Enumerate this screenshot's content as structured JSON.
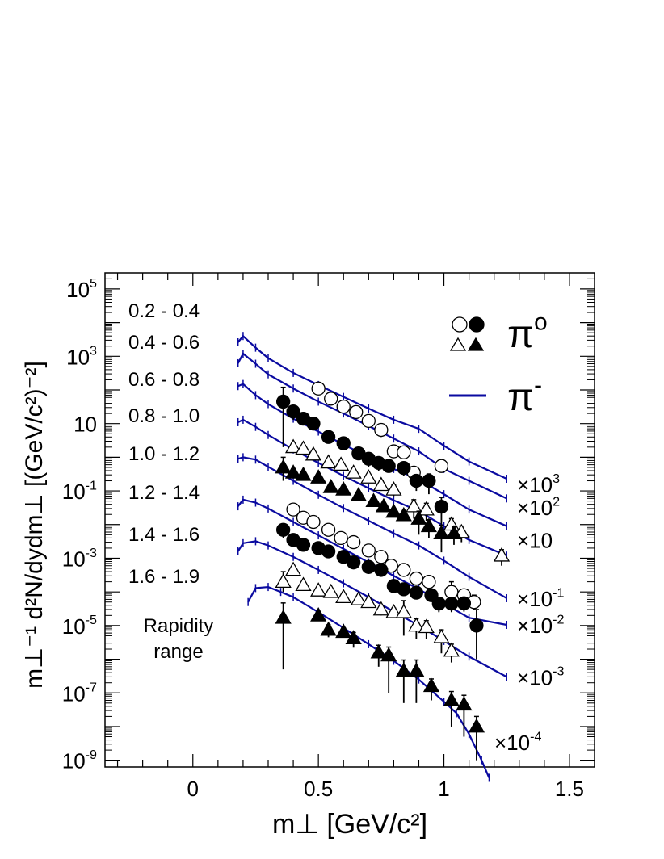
{
  "chart_data": {
    "type": "scatter",
    "xlabel": "m⊥  [GeV/c²]",
    "ylabel": "m⊥⁻¹ d²N/dydm⊥ [(GeV/c²)⁻²]",
    "xlim": [
      -0.35,
      1.6
    ],
    "ylim": [
      6.31e-10,
      300000
    ],
    "yscale": "log",
    "x_ticks": [
      "0",
      "0.5",
      "1",
      "1.5"
    ],
    "y_ticks": [
      {
        "base": "10",
        "exp": "5",
        "value": 100000
      },
      {
        "base": "10",
        "exp": "3",
        "value": 1000
      },
      {
        "base": "10",
        "exp": "",
        "value": 10
      },
      {
        "base": "10",
        "exp": "-1",
        "value": 0.1
      },
      {
        "base": "10",
        "exp": "-3",
        "value": 0.001
      },
      {
        "base": "10",
        "exp": "-5",
        "value": 1e-05
      },
      {
        "base": "10",
        "exp": "-7",
        "value": 1e-07
      },
      {
        "base": "10",
        "exp": "-9",
        "value": 1e-09
      }
    ],
    "grid": false,
    "legend": {
      "placement": "top-right",
      "entries": [
        {
          "markers": [
            "open-circle",
            "filled-circle"
          ],
          "label": "π",
          "sup": "o"
        },
        {
          "markers": [
            "open-triangle",
            "filled-triangle"
          ],
          "label": "π",
          "sup": "-"
        },
        {
          "markers": [
            "line"
          ],
          "label": "π",
          "sup": "-"
        }
      ]
    },
    "rapidity_labels": [
      "0.2 - 0.4",
      "0.4 - 0.6",
      "0.6 - 0.8",
      "0.8 - 1.0",
      "1.0 - 1.2",
      "1.2 - 1.4",
      "1.4 - 1.6",
      "1.6 - 1.9"
    ],
    "rapidity_caption": [
      "Rapidity",
      "range"
    ],
    "scale_labels": [
      {
        "base": "×10",
        "exp": "3",
        "y": 0.16
      },
      {
        "base": "×10",
        "exp": "2",
        "y": 0.033
      },
      {
        "base": "×10",
        "exp": "",
        "y": 0.0036
      },
      {
        "base": "×10",
        "exp": "-1",
        "y": 6.5e-05
      },
      {
        "base": "×10",
        "exp": "-2",
        "y": 1.05e-05
      },
      {
        "base": "×10",
        "exp": "-3",
        "y": 3e-07
      },
      {
        "base": "×10",
        "exp": "-4",
        "y": 3.5e-09
      }
    ],
    "line_color": "#0a0aa0",
    "series": [
      {
        "name": "0.2 - 0.4",
        "kind": "model",
        "style": "line",
        "x": [
          0.18,
          0.2,
          0.25,
          0.3,
          0.4,
          0.5,
          0.6,
          0.7,
          0.8,
          0.9,
          1.0,
          1.1,
          1.25
        ],
        "y": [
          2600,
          4000,
          1800,
          880,
          320,
          140,
          62,
          28,
          13,
          7,
          2.2,
          0.75,
          0.23
        ]
      },
      {
        "name": "0.4 - 0.6",
        "kind": "model",
        "style": "line",
        "x": [
          0.18,
          0.2,
          0.25,
          0.3,
          0.4,
          0.5,
          0.6,
          0.7,
          0.8,
          0.9,
          1.0,
          1.1,
          1.25
        ],
        "y": [
          620,
          1200,
          600,
          290,
          110,
          45,
          20,
          8.5,
          3.6,
          1.5,
          0.45,
          0.2,
          0.06
        ]
      },
      {
        "name": "0.6 - 0.8",
        "kind": "model",
        "style": "line",
        "x": [
          0.18,
          0.2,
          0.25,
          0.3,
          0.4,
          0.5,
          0.6,
          0.7,
          0.8,
          0.9,
          1.0,
          1.1,
          1.25
        ],
        "y": [
          130,
          150,
          70,
          38,
          14,
          5.8,
          2.4,
          1.0,
          0.45,
          0.22,
          0.08,
          0.028,
          0.009
        ]
      },
      {
        "name": "0.8 - 1.0",
        "kind": "model",
        "style": "line",
        "x": [
          0.18,
          0.2,
          0.25,
          0.3,
          0.4,
          0.5,
          0.6,
          0.7,
          0.8,
          0.9,
          1.0,
          1.1,
          1.25
        ],
        "y": [
          11,
          13,
          8,
          4.6,
          1.7,
          0.68,
          0.28,
          0.12,
          0.053,
          0.025,
          0.009,
          0.0035,
          0.0012
        ]
      },
      {
        "name": "1.0 - 1.2",
        "kind": "model",
        "style": "line",
        "x": [
          0.18,
          0.2,
          0.25,
          0.3,
          0.4,
          0.5,
          0.6,
          0.7,
          0.8,
          0.9,
          1.0,
          1.1,
          1.25
        ],
        "y": [
          0.9,
          1.0,
          0.85,
          0.52,
          0.2,
          0.077,
          0.031,
          0.013,
          0.0055,
          0.0024,
          0.00085,
          0.00028,
          6.5e-05
        ]
      },
      {
        "name": "1.2 - 1.4",
        "kind": "model",
        "style": "line",
        "x": [
          0.18,
          0.2,
          0.25,
          0.3,
          0.4,
          0.5,
          0.6,
          0.7,
          0.8,
          0.9,
          1.0,
          1.1,
          1.25
        ],
        "y": [
          0.035,
          0.055,
          0.045,
          0.03,
          0.012,
          0.0048,
          0.0019,
          0.00075,
          0.0003,
          0.00012,
          4.5e-05,
          1.7e-05,
          1.05e-05
        ]
      },
      {
        "name": "1.4 - 1.6",
        "kind": "model",
        "style": "line",
        "x": [
          0.18,
          0.2,
          0.25,
          0.3,
          0.4,
          0.5,
          0.6,
          0.7,
          0.8,
          0.9,
          1.0,
          1.1,
          1.25
        ],
        "y": [
          0.0016,
          0.0028,
          0.0032,
          0.0024,
          0.0011,
          0.00045,
          0.00018,
          7e-05,
          2.6e-05,
          1e-05,
          3.5e-06,
          1.2e-06,
          3e-07
        ]
      },
      {
        "name": "1.6 - 1.9",
        "kind": "model",
        "style": "line",
        "x": [
          0.22,
          0.25,
          0.3,
          0.35,
          0.4,
          0.5,
          0.6,
          0.7,
          0.8,
          0.9,
          1.0,
          1.05,
          1.1,
          1.15,
          1.18
        ],
        "y": [
          5e-05,
          0.00013,
          0.00014,
          0.0001,
          7e-05,
          2.5e-05,
          8.5e-06,
          2.8e-06,
          9e-07,
          2.5e-07,
          5.5e-08,
          2.5e-08,
          6e-09,
          1e-09,
          3e-10
        ]
      },
      {
        "name": "0.2 - 0.4",
        "kind": "data",
        "marker": "open-circle",
        "x": [
          0.5,
          0.55,
          0.6,
          0.65,
          0.7,
          0.75,
          0.8,
          0.84
        ],
        "y": [
          110,
          55,
          32,
          22,
          12,
          6.5,
          1.5,
          1.4
        ],
        "err": [
          [
            30,
            25
          ],
          [
            15,
            10
          ],
          [
            9,
            8
          ],
          [
            6,
            5
          ],
          [
            4,
            3
          ],
          [
            2.5,
            2
          ],
          [
            0.5,
            0.5
          ],
          [
            0.5,
            0.5
          ]
        ]
      },
      {
        "name": "0.4 - 0.6",
        "kind": "data",
        "marker": "open-circle",
        "x": [
          0.88,
          0.99
        ],
        "y": [
          0.35,
          0.55
        ],
        "err": [
          [
            0.15,
            0.1
          ],
          [
            0.2,
            0.2
          ]
        ]
      },
      {
        "name": "0.6 - 0.8",
        "kind": "data",
        "marker": "filled-circle",
        "x": [
          0.36,
          0.4,
          0.44,
          0.48,
          0.54,
          0.6,
          0.66,
          0.7,
          0.74,
          0.78,
          0.84,
          0.89,
          0.94,
          0.99
        ],
        "y": [
          45,
          23,
          14,
          10,
          4,
          2.6,
          1.3,
          0.9,
          0.68,
          0.55,
          0.48,
          0.2,
          0.2,
          0.034
        ],
        "err": [
          [
            43,
            75
          ],
          [
            10,
            5
          ],
          [
            3,
            3
          ],
          [
            2.5,
            2
          ],
          [
            1,
            1
          ],
          [
            0.6,
            0.6
          ],
          [
            0.3,
            0.3
          ],
          [
            0.4,
            0.4
          ],
          [
            0.3,
            0.3
          ],
          [
            0.2,
            0.2
          ],
          [
            0.2,
            0.2
          ],
          [
            0.1,
            0.1
          ],
          [
            0.12,
            0.12
          ],
          [
            0.03,
            0.03
          ]
        ]
      },
      {
        "name": "0.8 - 1.0",
        "kind": "data",
        "marker": "open-triangle",
        "x": [
          0.4,
          0.44,
          0.48,
          0.54,
          0.59,
          0.64,
          0.7,
          0.75,
          0.8,
          0.88,
          0.93,
          1.03,
          1.07,
          1.23
        ],
        "y": [
          2.0,
          1.8,
          1.2,
          0.7,
          0.6,
          0.35,
          0.25,
          0.15,
          0.11,
          0.035,
          0.028,
          0.01,
          0.006,
          0.0012
        ],
        "err": [
          [
            0.6,
            0.6
          ],
          [
            0.4,
            0.4
          ],
          [
            0.3,
            0.3
          ],
          [
            0.2,
            0.2
          ],
          [
            0.15,
            0.15
          ],
          [
            0.1,
            0.1
          ],
          [
            0.06,
            0.06
          ],
          [
            0.05,
            0.05
          ],
          [
            0.04,
            0.04
          ],
          [
            0.02,
            0.02
          ],
          [
            0.015,
            0.015
          ],
          [
            0.005,
            0.005
          ],
          [
            0.003,
            0.003
          ],
          [
            0.0006,
            0.0006
          ]
        ]
      },
      {
        "name": "1.0 - 1.2",
        "kind": "data",
        "marker": "filled-triangle",
        "x": [
          0.36,
          0.4,
          0.44,
          0.5,
          0.55,
          0.6,
          0.66,
          0.72,
          0.76,
          0.8,
          0.84,
          0.9,
          0.94,
          0.99,
          1.04
        ],
        "y": [
          0.5,
          0.35,
          0.3,
          0.25,
          0.13,
          0.11,
          0.075,
          0.05,
          0.035,
          0.024,
          0.019,
          0.015,
          0.009,
          0.0055,
          0.0055
        ],
        "err": [
          [
            0.3,
            0.5
          ],
          [
            0.1,
            0.1
          ],
          [
            0.06,
            0.06
          ],
          [
            0.05,
            0.05
          ],
          [
            0.03,
            0.03
          ],
          [
            0.02,
            0.02
          ],
          [
            0.015,
            0.015
          ],
          [
            0.01,
            0.01
          ],
          [
            0.008,
            0.008
          ],
          [
            0.006,
            0.006
          ],
          [
            0.005,
            0.005
          ],
          [
            0.01,
            0.01
          ],
          [
            0.005,
            0.005
          ],
          [
            0.004,
            0.004
          ],
          [
            0.003,
            0.003
          ]
        ]
      },
      {
        "name": "1.2 - 1.4",
        "kind": "data",
        "marker": "open-circle",
        "x": [
          0.4,
          0.44,
          0.48,
          0.54,
          0.59,
          0.64,
          0.7,
          0.75,
          0.79,
          0.84,
          0.89,
          0.94,
          1.03,
          1.08,
          1.12
        ],
        "y": [
          0.028,
          0.016,
          0.012,
          0.007,
          0.004,
          0.003,
          0.0017,
          0.0011,
          0.0006,
          0.00045,
          0.00025,
          0.0002,
          0.0001,
          8e-05,
          5e-05
        ],
        "err": [
          [
            0.005,
            0.005
          ],
          [
            0.003,
            0.003
          ],
          [
            0.002,
            0.002
          ],
          [
            0.0012,
            0.0012
          ],
          [
            0.0007,
            0.0007
          ],
          [
            0.0005,
            0.0005
          ],
          [
            0.0003,
            0.0003
          ],
          [
            0.0002,
            0.0002
          ],
          [
            0.0001,
            0.0001
          ],
          [
            9e-05,
            9e-05
          ],
          [
            5e-05,
            5e-05
          ],
          [
            4e-05,
            4e-05
          ],
          [
            5e-05,
            0.0001
          ],
          [
            3e-05,
            4e-05
          ],
          [
            2e-05,
            3e-05
          ]
        ]
      },
      {
        "name": "1.4 - 1.6",
        "kind": "data",
        "marker": "filled-circle",
        "x": [
          0.36,
          0.4,
          0.44,
          0.5,
          0.54,
          0.6,
          0.64,
          0.7,
          0.75,
          0.8,
          0.84,
          0.89,
          0.95,
          0.98,
          1.03,
          1.08,
          1.13
        ],
        "y": [
          0.007,
          0.0035,
          0.0025,
          0.002,
          0.0016,
          0.0011,
          0.00075,
          0.00055,
          0.00045,
          0.00015,
          0.00012,
          9.5e-05,
          8e-05,
          4.5e-05,
          4.5e-05,
          4.6e-05,
          1e-05
        ],
        "err": [
          [
            0.003,
            0.003
          ],
          [
            0.001,
            0.001
          ],
          [
            0.0006,
            0.0006
          ],
          [
            0.0004,
            0.0004
          ],
          [
            0.0003,
            0.0003
          ],
          [
            0.0002,
            0.0002
          ],
          [
            0.00015,
            0.00015
          ],
          [
            0.0001,
            0.0001
          ],
          [
            9e-05,
            9e-05
          ],
          [
            4e-05,
            4e-05
          ],
          [
            3e-05,
            3e-05
          ],
          [
            2e-05,
            2e-05
          ],
          [
            3e-05,
            3e-05
          ],
          [
            2e-05,
            2e-05
          ],
          [
            2e-05,
            2e-05
          ],
          [
            2e-05,
            2e-05
          ],
          [
            9e-06,
            2e-05
          ]
        ]
      },
      {
        "name": "1.4 - 1.6",
        "kind": "data",
        "marker": "open-triangle",
        "x": [
          0.36,
          0.4,
          0.44,
          0.5,
          0.55,
          0.6,
          0.66,
          0.7,
          0.75,
          0.8,
          0.84,
          0.89,
          0.93,
          0.99,
          1.03
        ],
        "y": [
          0.0002,
          0.00045,
          0.00016,
          0.00011,
          0.0001,
          7e-05,
          6e-05,
          5e-05,
          3e-05,
          2.5e-05,
          2.5e-05,
          1e-05,
          9e-06,
          4.5e-06,
          1.8e-06
        ],
        "err": [
          [
            0.0001,
            0.0002
          ],
          [
            0.0001,
            0.0001
          ],
          [
            4e-05,
            4e-05
          ],
          [
            3e-05,
            3e-05
          ],
          [
            2e-05,
            2e-05
          ],
          [
            2e-05,
            2e-05
          ],
          [
            1.5e-05,
            1.5e-05
          ],
          [
            1e-05,
            1e-05
          ],
          [
            1e-05,
            1e-05
          ],
          [
            8e-06,
            8e-06
          ],
          [
            2e-05,
            3e-05
          ],
          [
            6e-06,
            6e-06
          ],
          [
            5e-06,
            5e-06
          ],
          [
            3e-06,
            3e-06
          ],
          [
            1e-06,
            1e-06
          ]
        ]
      },
      {
        "name": "1.6 - 1.9",
        "kind": "data",
        "marker": "filled-triangle",
        "x": [
          0.36,
          0.5,
          0.54,
          0.6,
          0.64,
          0.74,
          0.78,
          0.84,
          0.89,
          0.95,
          1.03,
          1.08,
          1.13
        ],
        "y": [
          1.7e-05,
          2e-05,
          7.5e-06,
          6.5e-06,
          4.2e-06,
          1.6e-06,
          1.3e-06,
          4.5e-07,
          4.5e-07,
          1.6e-07,
          6e-08,
          4.5e-08,
          1e-08
        ],
        "err": [
          [
            1.65e-05,
            3e-05
          ],
          [
            5e-06,
            5e-06
          ],
          [
            3e-06,
            3e-06
          ],
          [
            2e-06,
            2e-06
          ],
          [
            2e-06,
            2e-06
          ],
          [
            1e-06,
            1e-06
          ],
          [
            1.2e-06,
            1e-06
          ],
          [
            4e-07,
            5e-07
          ],
          [
            4e-07,
            5e-07
          ],
          [
            1e-07,
            1e-07
          ],
          [
            5e-08,
            5e-08
          ],
          [
            4e-08,
            4e-08
          ],
          [
            9e-09,
            1e-08
          ]
        ]
      }
    ]
  }
}
